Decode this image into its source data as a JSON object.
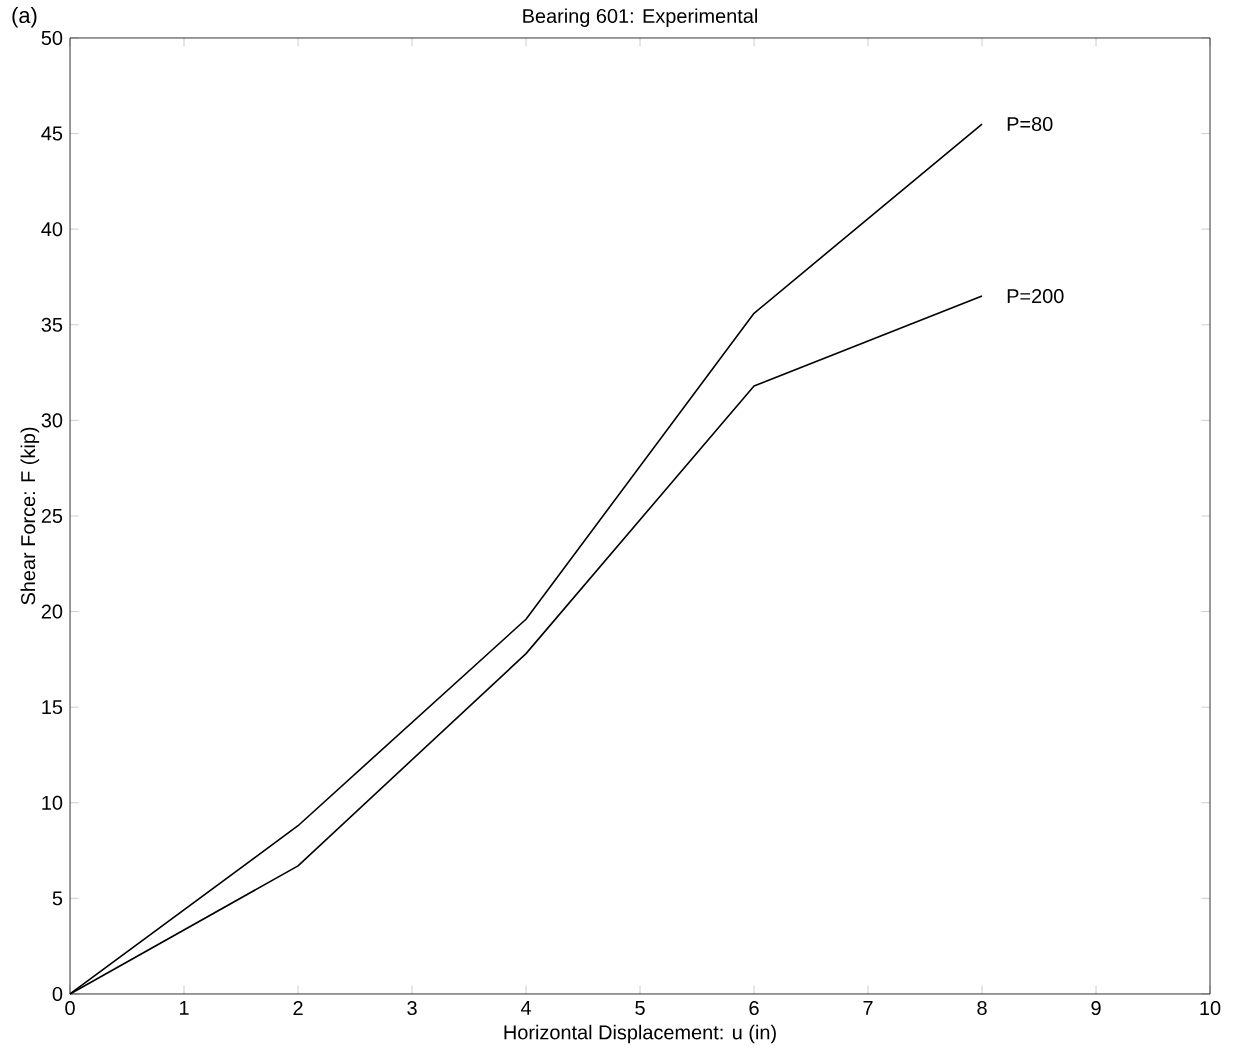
{
  "chart_data": {
    "type": "line",
    "title": "Bearing 601: Experimental",
    "xlabel": "Horizontal Displacement: u (in)",
    "ylabel": "Shear Force: F (kip)",
    "x": [
      0,
      2,
      4,
      6,
      8
    ],
    "series": [
      {
        "name": "P=80",
        "color": "#000000",
        "values": [
          0,
          8.8,
          19.6,
          35.6,
          45.5
        ]
      },
      {
        "name": "P=200",
        "color": "#000000",
        "values": [
          0,
          6.7,
          17.8,
          31.8,
          36.5
        ]
      }
    ],
    "xlim": [
      0,
      10
    ],
    "ylim": [
      0,
      50
    ],
    "xticks": [
      0,
      1,
      2,
      3,
      4,
      5,
      6,
      7,
      8,
      9,
      10
    ],
    "yticks": [
      0,
      5,
      10,
      15,
      20,
      25,
      30,
      35,
      40,
      45,
      50
    ],
    "grid": false,
    "marker": "none",
    "line_style": "solid",
    "annotations": [
      "(a)"
    ]
  }
}
